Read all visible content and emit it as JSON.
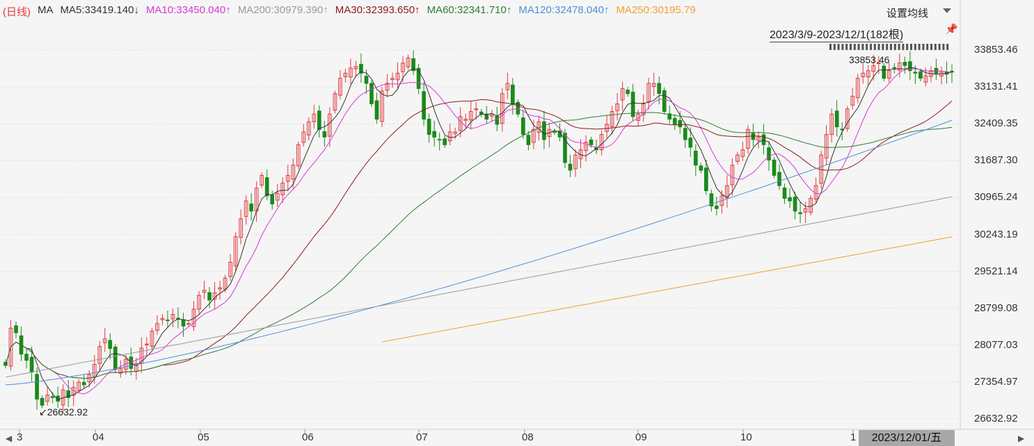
{
  "header": {
    "period": "(日线)",
    "ma_label": "MA",
    "mas": [
      {
        "text": "MA5:33419.140↓",
        "color": "#333333"
      },
      {
        "text": "MA10:33450.040↑",
        "color": "#d63ad6"
      },
      {
        "text": "MA200:30979.390↑",
        "color": "#9a9a9a"
      },
      {
        "text": "MA30:32393.650↑",
        "color": "#8b1a1a"
      },
      {
        "text": "MA60:32341.710↑",
        "color": "#2e7d32"
      },
      {
        "text": "MA120:32478.040↑",
        "color": "#4a90d9"
      },
      {
        "text": "MA250:30195.79",
        "color": "#f0a030"
      }
    ]
  },
  "settings_label": "设置均线",
  "range_label": "2023/3/9-2023/12/1(182根)",
  "pin_icon": "pin-icon",
  "y_axis": {
    "ticks": [
      "33853.46",
      "33131.41",
      "32409.35",
      "31687.30",
      "30965.24",
      "30243.19",
      "29521.14",
      "28799.08",
      "28077.03",
      "27354.97",
      "26632.92"
    ]
  },
  "x_axis": {
    "ticks": [
      "3",
      "04",
      "05",
      "06",
      "07",
      "08",
      "09",
      "10",
      "1"
    ]
  },
  "selected_date": "2023/12/01/五",
  "annotations": {
    "high": "33853.46",
    "low": "26632.92"
  },
  "colors": {
    "up": "#e0393e",
    "down": "#1a8a1a",
    "bg": "#f5f5f5",
    "grid": "#e2e2e2"
  },
  "chart_data": {
    "type": "candlestick",
    "range": "2023/3/9-2023/12/1",
    "bars": 182,
    "ylim": [
      26632.92,
      33853.46
    ],
    "high": 33853.46,
    "low": 26632.92,
    "closes": [
      27680,
      28410,
      28320,
      27900,
      27780,
      27550,
      27020,
      26900,
      27100,
      27050,
      26980,
      27200,
      27050,
      27250,
      27350,
      27300,
      27500,
      27700,
      28050,
      28200,
      28010,
      27600,
      27620,
      27800,
      27620,
      27720,
      28020,
      28100,
      28350,
      28500,
      28600,
      28560,
      28680,
      28590,
      28450,
      28500,
      28780,
      29050,
      29150,
      28960,
      29100,
      29200,
      29390,
      29700,
      30200,
      30550,
      30900,
      30700,
      31150,
      31400,
      31000,
      30840,
      31050,
      31250,
      31400,
      31600,
      32000,
      32250,
      32450,
      32600,
      32300,
      32150,
      32600,
      33000,
      33300,
      33400,
      33500,
      33530,
      33400,
      33200,
      32800,
      32500,
      33050,
      33200,
      33300,
      33400,
      33600,
      33700,
      33450,
      33100,
      32500,
      32200,
      32150,
      32100,
      32000,
      32250,
      32250,
      32550,
      32500,
      32650,
      32700,
      32600,
      32500,
      32600,
      32400,
      33000,
      33200,
      32800,
      32600,
      32200,
      32000,
      32300,
      32450,
      32100,
      32300,
      32250,
      32150,
      31650,
      31500,
      31800,
      31900,
      32050,
      32000,
      31900,
      32200,
      32400,
      32650,
      32800,
      33100,
      33000,
      32550,
      32600,
      32800,
      33200,
      33200,
      33000,
      32650,
      32500,
      32400,
      32350,
      32100,
      31950,
      31600,
      31500,
      31100,
      30800,
      30750,
      31000,
      31200,
      31600,
      31800,
      31900,
      32300,
      32100,
      32150,
      32000,
      31700,
      31400,
      31200,
      30950,
      30900,
      30700,
      30650,
      30750,
      30950,
      31200,
      31800,
      32200,
      32600,
      32350,
      32300,
      32700,
      32950,
      33300,
      33400,
      33450,
      33550,
      33600,
      33300,
      33450,
      33500,
      33600,
      33550,
      33450,
      33400,
      33300,
      33350,
      33450,
      33400,
      33420,
      33380,
      33420
    ],
    "ma_series": [
      {
        "name": "MA5",
        "color": "#333333",
        "last": 33419.14
      },
      {
        "name": "MA10",
        "color": "#d63ad6",
        "last": 33450.04
      },
      {
        "name": "MA30",
        "color": "#8b1a1a",
        "last": 32393.65
      },
      {
        "name": "MA60",
        "color": "#2e7d32",
        "last": 32341.71
      },
      {
        "name": "MA120",
        "color": "#4a90d9",
        "last": 32478.04
      },
      {
        "name": "MA200",
        "color": "#9a9a9a",
        "last": 30979.39
      },
      {
        "name": "MA250",
        "color": "#f0a030",
        "last": 30195.79
      }
    ]
  }
}
